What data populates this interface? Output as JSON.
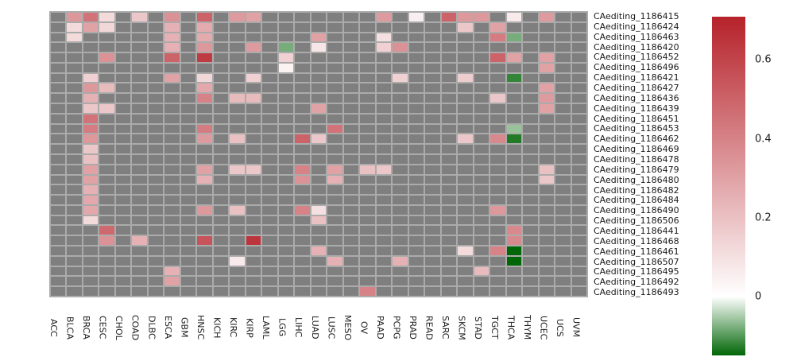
{
  "chart_data": {
    "type": "heatmap",
    "title": "",
    "xlabel": "",
    "ylabel": "",
    "rows": [
      "CAediting_1186415",
      "CAediting_1186424",
      "CAediting_1186463",
      "CAediting_1186420",
      "CAediting_1186452",
      "CAediting_1186496",
      "CAediting_1186421",
      "CAediting_1186427",
      "CAediting_1186436",
      "CAediting_1186439",
      "CAediting_1186451",
      "CAediting_1186453",
      "CAediting_1186462",
      "CAediting_1186469",
      "CAediting_1186478",
      "CAediting_1186479",
      "CAediting_1186480",
      "CAediting_1186482",
      "CAediting_1186484",
      "CAediting_1186490",
      "CAediting_1186506",
      "CAediting_1186441",
      "CAediting_1186468",
      "CAediting_1186461",
      "CAediting_1186507",
      "CAediting_1186495",
      "CAediting_1186492",
      "CAediting_1186493"
    ],
    "columns": [
      "ACC",
      "BLCA",
      "BRCA",
      "CESC",
      "CHOL",
      "COAD",
      "DLBC",
      "ESCA",
      "GBM",
      "HNSC",
      "KICH",
      "KIRC",
      "KIRP",
      "LAML",
      "LGG",
      "LIHC",
      "LUAD",
      "LUSC",
      "MESO",
      "OV",
      "PAAD",
      "PCPG",
      "PRAD",
      "READ",
      "SARC",
      "SKCM",
      "STAD",
      "TGCT",
      "THCA",
      "THYM",
      "UCEC",
      "UCS",
      "UVM"
    ],
    "cells": [
      [
        "CAediting_1186415",
        "BLCA",
        0.33
      ],
      [
        "CAediting_1186415",
        "BRCA",
        0.45
      ],
      [
        "CAediting_1186415",
        "CESC",
        0.12
      ],
      [
        "CAediting_1186415",
        "COAD",
        0.18
      ],
      [
        "CAediting_1186415",
        "ESCA",
        0.35
      ],
      [
        "CAediting_1186415",
        "HNSC",
        0.5
      ],
      [
        "CAediting_1186415",
        "KIRC",
        0.32
      ],
      [
        "CAediting_1186415",
        "KIRP",
        0.3
      ],
      [
        "CAediting_1186415",
        "PAAD",
        0.32
      ],
      [
        "CAediting_1186415",
        "PRAD",
        0.05
      ],
      [
        "CAediting_1186415",
        "SARC",
        0.5
      ],
      [
        "CAediting_1186415",
        "SKCM",
        0.33
      ],
      [
        "CAediting_1186415",
        "STAD",
        0.33
      ],
      [
        "CAediting_1186415",
        "THCA",
        0.07
      ],
      [
        "CAediting_1186415",
        "UCEC",
        0.32
      ],
      [
        "CAediting_1186424",
        "BLCA",
        0.12
      ],
      [
        "CAediting_1186424",
        "BRCA",
        0.3
      ],
      [
        "CAediting_1186424",
        "CESC",
        0.13
      ],
      [
        "CAediting_1186424",
        "ESCA",
        0.25
      ],
      [
        "CAediting_1186424",
        "HNSC",
        0.27
      ],
      [
        "CAediting_1186424",
        "SKCM",
        0.18
      ],
      [
        "CAediting_1186424",
        "TGCT",
        0.3
      ],
      [
        "CAediting_1186463",
        "BLCA",
        0.12
      ],
      [
        "CAediting_1186463",
        "ESCA",
        0.25
      ],
      [
        "CAediting_1186463",
        "HNSC",
        0.27
      ],
      [
        "CAediting_1186463",
        "LUAD",
        0.3
      ],
      [
        "CAediting_1186463",
        "PAAD",
        0.1
      ],
      [
        "CAediting_1186463",
        "TGCT",
        0.42
      ],
      [
        "CAediting_1186463",
        "THCA",
        -0.08
      ],
      [
        "CAediting_1186420",
        "ESCA",
        0.25
      ],
      [
        "CAediting_1186420",
        "HNSC",
        0.33
      ],
      [
        "CAediting_1186420",
        "KIRP",
        0.32
      ],
      [
        "CAediting_1186420",
        "LGG",
        -0.08
      ],
      [
        "CAediting_1186420",
        "LUAD",
        0.08
      ],
      [
        "CAediting_1186420",
        "PAAD",
        0.15
      ],
      [
        "CAediting_1186420",
        "PCPG",
        0.35
      ],
      [
        "CAediting_1186452",
        "CESC",
        0.35
      ],
      [
        "CAediting_1186452",
        "ESCA",
        0.5
      ],
      [
        "CAediting_1186452",
        "HNSC",
        0.63
      ],
      [
        "CAediting_1186452",
        "LGG",
        0.15
      ],
      [
        "CAediting_1186452",
        "TGCT",
        0.5
      ],
      [
        "CAediting_1186452",
        "THCA",
        0.3
      ],
      [
        "CAediting_1186452",
        "UCEC",
        0.3
      ],
      [
        "CAediting_1186496",
        "LGG",
        0.04
      ],
      [
        "CAediting_1186496",
        "UCEC",
        0.3
      ],
      [
        "CAediting_1186421",
        "BRCA",
        0.15
      ],
      [
        "CAediting_1186421",
        "ESCA",
        0.3
      ],
      [
        "CAediting_1186421",
        "HNSC",
        0.13
      ],
      [
        "CAediting_1186421",
        "KIRP",
        0.15
      ],
      [
        "CAediting_1186421",
        "PCPG",
        0.15
      ],
      [
        "CAediting_1186421",
        "SKCM",
        0.16
      ],
      [
        "CAediting_1186421",
        "THCA",
        -0.12
      ],
      [
        "CAediting_1186427",
        "BRCA",
        0.33
      ],
      [
        "CAediting_1186427",
        "CESC",
        0.22
      ],
      [
        "CAediting_1186427",
        "HNSC",
        0.28
      ],
      [
        "CAediting_1186427",
        "UCEC",
        0.3
      ],
      [
        "CAediting_1186436",
        "BRCA",
        0.25
      ],
      [
        "CAediting_1186436",
        "HNSC",
        0.4
      ],
      [
        "CAediting_1186436",
        "KIRC",
        0.22
      ],
      [
        "CAediting_1186436",
        "KIRP",
        0.22
      ],
      [
        "CAediting_1186436",
        "TGCT",
        0.18
      ],
      [
        "CAediting_1186436",
        "UCEC",
        0.32
      ],
      [
        "CAediting_1186439",
        "BRCA",
        0.18
      ],
      [
        "CAediting_1186439",
        "CESC",
        0.18
      ],
      [
        "CAediting_1186439",
        "LUAD",
        0.3
      ],
      [
        "CAediting_1186439",
        "UCEC",
        0.3
      ],
      [
        "CAediting_1186451",
        "BRCA",
        0.45
      ],
      [
        "CAediting_1186453",
        "BRCA",
        0.42
      ],
      [
        "CAediting_1186453",
        "HNSC",
        0.42
      ],
      [
        "CAediting_1186453",
        "LUSC",
        0.45
      ],
      [
        "CAediting_1186453",
        "THCA",
        -0.06
      ],
      [
        "CAediting_1186462",
        "BRCA",
        0.33
      ],
      [
        "CAediting_1186462",
        "HNSC",
        0.32
      ],
      [
        "CAediting_1186462",
        "KIRC",
        0.2
      ],
      [
        "CAediting_1186462",
        "LIHC",
        0.5
      ],
      [
        "CAediting_1186462",
        "LUAD",
        0.18
      ],
      [
        "CAediting_1186462",
        "SKCM",
        0.18
      ],
      [
        "CAediting_1186462",
        "TGCT",
        0.38
      ],
      [
        "CAediting_1186462",
        "THCA",
        -0.13
      ],
      [
        "CAediting_1186469",
        "BRCA",
        0.18
      ],
      [
        "CAediting_1186478",
        "BRCA",
        0.2
      ],
      [
        "CAediting_1186479",
        "BRCA",
        0.3
      ],
      [
        "CAediting_1186479",
        "HNSC",
        0.3
      ],
      [
        "CAediting_1186479",
        "KIRC",
        0.18
      ],
      [
        "CAediting_1186479",
        "KIRP",
        0.18
      ],
      [
        "CAediting_1186479",
        "LIHC",
        0.4
      ],
      [
        "CAediting_1186479",
        "LUSC",
        0.3
      ],
      [
        "CAediting_1186479",
        "OV",
        0.2
      ],
      [
        "CAediting_1186479",
        "PAAD",
        0.18
      ],
      [
        "CAediting_1186479",
        "UCEC",
        0.2
      ],
      [
        "CAediting_1186480",
        "BRCA",
        0.3
      ],
      [
        "CAediting_1186480",
        "HNSC",
        0.25
      ],
      [
        "CAediting_1186480",
        "LIHC",
        0.35
      ],
      [
        "CAediting_1186480",
        "LUSC",
        0.25
      ],
      [
        "CAediting_1186480",
        "UCEC",
        0.18
      ],
      [
        "CAediting_1186482",
        "BRCA",
        0.25
      ],
      [
        "CAediting_1186484",
        "BRCA",
        0.28
      ],
      [
        "CAediting_1186490",
        "BRCA",
        0.28
      ],
      [
        "CAediting_1186490",
        "HNSC",
        0.33
      ],
      [
        "CAediting_1186490",
        "KIRC",
        0.2
      ],
      [
        "CAediting_1186490",
        "LIHC",
        0.4
      ],
      [
        "CAediting_1186490",
        "LUAD",
        0.1
      ],
      [
        "CAediting_1186490",
        "TGCT",
        0.33
      ],
      [
        "CAediting_1186506",
        "BRCA",
        0.12
      ],
      [
        "CAediting_1186506",
        "LUAD",
        0.2
      ],
      [
        "CAediting_1186441",
        "CESC",
        0.48
      ],
      [
        "CAediting_1186441",
        "THCA",
        0.38
      ],
      [
        "CAediting_1186468",
        "CESC",
        0.35
      ],
      [
        "CAediting_1186468",
        "COAD",
        0.25
      ],
      [
        "CAediting_1186468",
        "HNSC",
        0.55
      ],
      [
        "CAediting_1186468",
        "KIRP",
        0.65
      ],
      [
        "CAediting_1186468",
        "THCA",
        0.38
      ],
      [
        "CAediting_1186461",
        "LUAD",
        0.25
      ],
      [
        "CAediting_1186461",
        "SKCM",
        0.12
      ],
      [
        "CAediting_1186461",
        "TGCT",
        0.4
      ],
      [
        "CAediting_1186461",
        "THCA",
        -0.15
      ],
      [
        "CAediting_1186507",
        "KIRC",
        0.07
      ],
      [
        "CAediting_1186507",
        "LUSC",
        0.25
      ],
      [
        "CAediting_1186507",
        "PCPG",
        0.25
      ],
      [
        "CAediting_1186507",
        "THCA",
        -0.15
      ],
      [
        "CAediting_1186495",
        "ESCA",
        0.25
      ],
      [
        "CAediting_1186495",
        "STAD",
        0.22
      ],
      [
        "CAediting_1186492",
        "ESCA",
        0.3
      ],
      [
        "CAediting_1186493",
        "OV",
        0.4
      ]
    ],
    "na_color": "#7f7f7f",
    "grid_background": "#ababab",
    "colorbar": {
      "legend_position": "right",
      "tick_labels": [
        "0.6",
        "0.4",
        "0.2",
        "0"
      ],
      "tick_values": [
        0.6,
        0.4,
        0.2,
        0
      ],
      "vmax": 0.71,
      "vmin": -0.15,
      "max_color": "#b6222a",
      "zero_color": "#ffffff",
      "min_color": "#006606"
    },
    "layout": {
      "grid_on": false,
      "x_tick_rotation": 90,
      "row_labels_side": "right",
      "col_labels_side": "bottom"
    }
  }
}
